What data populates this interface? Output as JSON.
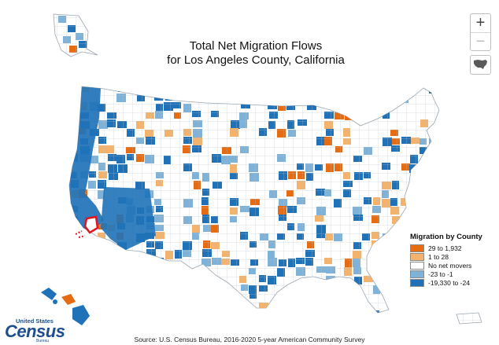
{
  "title": {
    "line1": "Total Net Migration Flows",
    "line2": "for Los Angeles County, California"
  },
  "controls": {
    "zoom_in": "+",
    "zoom_out": "−",
    "home_icon": "us-map-icon"
  },
  "legend": {
    "title": "Migration by County",
    "items": [
      {
        "label": "29 to 1,932",
        "color": "#e76b10"
      },
      {
        "label": "1 to 28",
        "color": "#f4b26a"
      },
      {
        "label": "No net movers",
        "color": "#ffffff"
      },
      {
        "label": "-23 to -1",
        "color": "#7eb2d8"
      },
      {
        "label": "-19,330 to -24",
        "color": "#1f72b8"
      }
    ]
  },
  "highlight": {
    "name": "Los Angeles County",
    "color": "#e3141b"
  },
  "source": "Source: U.S. Census Bureau, 2016-2020 5-year American Community Survey",
  "logo": {
    "line1": "United States",
    "line2": "Census",
    "line3": "Bureau"
  },
  "colors": {
    "blue_dark": "#1f72b8",
    "blue_light": "#7eb2d8",
    "orange_dark": "#e76b10",
    "orange_light": "#f4b26a",
    "county_border": "#b9c2cc"
  }
}
